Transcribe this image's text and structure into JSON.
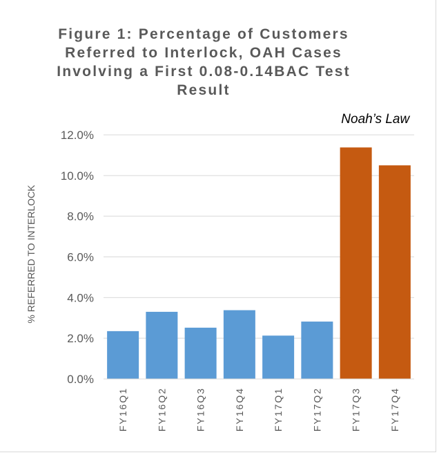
{
  "chart_data": {
    "type": "bar",
    "title": "Figure 1: Percentage of Customers Referred to Interlock, OAH Cases Involving a First 0.08-0.14BAC Test Result",
    "xlabel": "",
    "ylabel": "% REFERRED TO INTERLOCK",
    "ylim": [
      0,
      0.12
    ],
    "yticks": [
      "0.0%",
      "2.0%",
      "4.0%",
      "6.0%",
      "8.0%",
      "10.0%",
      "12.0%"
    ],
    "categories": [
      "FY16Q1",
      "FY16Q2",
      "FY16Q3",
      "FY16Q4",
      "FY17Q1",
      "FY17Q2",
      "FY17Q3",
      "FY17Q4"
    ],
    "values": [
      0.0235,
      0.033,
      0.0252,
      0.0338,
      0.0213,
      0.0282,
      0.1138,
      0.105
    ],
    "bar_colors": [
      "#5b9bd5",
      "#5b9bd5",
      "#5b9bd5",
      "#5b9bd5",
      "#5b9bd5",
      "#5b9bd5",
      "#c55a11",
      "#c55a11"
    ],
    "annotation": "Noah’s Law",
    "grid": true
  }
}
